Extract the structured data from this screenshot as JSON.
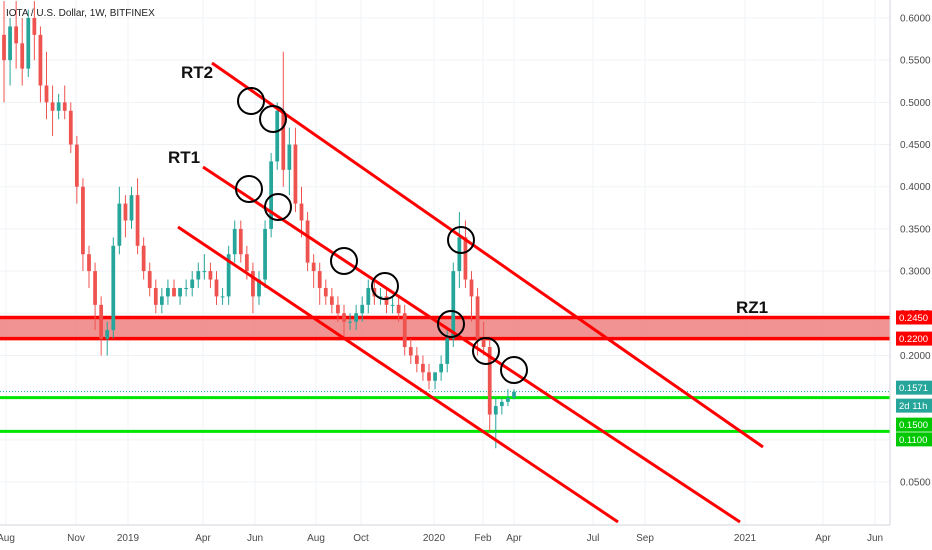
{
  "chart_data": {
    "type": "candlestick",
    "title": "IOTA / U.S. Dollar, 1W, BITFINEX",
    "y_ticks": [
      0.05,
      0.11,
      0.15,
      0.2,
      0.22,
      0.245,
      0.25,
      0.3,
      0.35,
      0.4,
      0.45,
      0.5,
      0.55,
      0.6
    ],
    "y_tick_labels": [
      "0.0500",
      "0.1100",
      "0.1500",
      "0.2000",
      "0.2200",
      "0.2450",
      "0.2500",
      "0.3000",
      "0.3500",
      "0.4000",
      "0.4500",
      "0.5000",
      "0.5500",
      "0.6000"
    ],
    "x_tick_labels": [
      "Aug",
      "Nov",
      "2019",
      "Apr",
      "Jun",
      "Aug",
      "Oct",
      "2020",
      "Feb",
      "Apr",
      "Jul",
      "Sep",
      "2021",
      "Apr",
      "Jun"
    ],
    "ylim": [
      0.0,
      0.62
    ],
    "colors": {
      "up": "#26a69a",
      "down": "#ef5350",
      "line": "#ff0000",
      "support": "#00e600",
      "zone": "#f08080"
    },
    "candles": [
      {
        "o": 0.58,
        "h": 0.62,
        "l": 0.5,
        "c": 0.55
      },
      {
        "o": 0.55,
        "h": 0.6,
        "l": 0.52,
        "c": 0.59
      },
      {
        "o": 0.59,
        "h": 0.62,
        "l": 0.54,
        "c": 0.57
      },
      {
        "o": 0.57,
        "h": 0.6,
        "l": 0.52,
        "c": 0.54
      },
      {
        "o": 0.54,
        "h": 0.61,
        "l": 0.53,
        "c": 0.6
      },
      {
        "o": 0.6,
        "h": 0.62,
        "l": 0.55,
        "c": 0.58
      },
      {
        "o": 0.58,
        "h": 0.59,
        "l": 0.5,
        "c": 0.52
      },
      {
        "o": 0.52,
        "h": 0.56,
        "l": 0.48,
        "c": 0.5
      },
      {
        "o": 0.5,
        "h": 0.52,
        "l": 0.46,
        "c": 0.49
      },
      {
        "o": 0.49,
        "h": 0.51,
        "l": 0.48,
        "c": 0.5
      },
      {
        "o": 0.5,
        "h": 0.52,
        "l": 0.48,
        "c": 0.49
      },
      {
        "o": 0.49,
        "h": 0.5,
        "l": 0.44,
        "c": 0.45
      },
      {
        "o": 0.45,
        "h": 0.46,
        "l": 0.38,
        "c": 0.4
      },
      {
        "o": 0.4,
        "h": 0.41,
        "l": 0.3,
        "c": 0.32
      },
      {
        "o": 0.32,
        "h": 0.33,
        "l": 0.28,
        "c": 0.3
      },
      {
        "o": 0.3,
        "h": 0.31,
        "l": 0.23,
        "c": 0.26
      },
      {
        "o": 0.26,
        "h": 0.27,
        "l": 0.2,
        "c": 0.22
      },
      {
        "o": 0.22,
        "h": 0.24,
        "l": 0.2,
        "c": 0.23
      },
      {
        "o": 0.23,
        "h": 0.34,
        "l": 0.22,
        "c": 0.33
      },
      {
        "o": 0.33,
        "h": 0.4,
        "l": 0.32,
        "c": 0.38
      },
      {
        "o": 0.38,
        "h": 0.39,
        "l": 0.34,
        "c": 0.36
      },
      {
        "o": 0.36,
        "h": 0.4,
        "l": 0.35,
        "c": 0.39
      },
      {
        "o": 0.39,
        "h": 0.41,
        "l": 0.32,
        "c": 0.33
      },
      {
        "o": 0.33,
        "h": 0.34,
        "l": 0.29,
        "c": 0.3
      },
      {
        "o": 0.3,
        "h": 0.31,
        "l": 0.27,
        "c": 0.28
      },
      {
        "o": 0.28,
        "h": 0.29,
        "l": 0.25,
        "c": 0.26
      },
      {
        "o": 0.26,
        "h": 0.28,
        "l": 0.25,
        "c": 0.27
      },
      {
        "o": 0.27,
        "h": 0.29,
        "l": 0.26,
        "c": 0.28
      },
      {
        "o": 0.28,
        "h": 0.29,
        "l": 0.27,
        "c": 0.27
      },
      {
        "o": 0.27,
        "h": 0.28,
        "l": 0.26,
        "c": 0.28
      },
      {
        "o": 0.28,
        "h": 0.29,
        "l": 0.27,
        "c": 0.28
      },
      {
        "o": 0.28,
        "h": 0.3,
        "l": 0.27,
        "c": 0.29
      },
      {
        "o": 0.29,
        "h": 0.31,
        "l": 0.28,
        "c": 0.3
      },
      {
        "o": 0.3,
        "h": 0.32,
        "l": 0.29,
        "c": 0.3
      },
      {
        "o": 0.3,
        "h": 0.31,
        "l": 0.28,
        "c": 0.29
      },
      {
        "o": 0.29,
        "h": 0.3,
        "l": 0.26,
        "c": 0.27
      },
      {
        "o": 0.27,
        "h": 0.28,
        "l": 0.26,
        "c": 0.27
      },
      {
        "o": 0.27,
        "h": 0.33,
        "l": 0.26,
        "c": 0.32
      },
      {
        "o": 0.32,
        "h": 0.36,
        "l": 0.31,
        "c": 0.35
      },
      {
        "o": 0.35,
        "h": 0.36,
        "l": 0.31,
        "c": 0.32
      },
      {
        "o": 0.32,
        "h": 0.33,
        "l": 0.29,
        "c": 0.3
      },
      {
        "o": 0.3,
        "h": 0.31,
        "l": 0.25,
        "c": 0.27
      },
      {
        "o": 0.27,
        "h": 0.3,
        "l": 0.26,
        "c": 0.29
      },
      {
        "o": 0.29,
        "h": 0.36,
        "l": 0.28,
        "c": 0.35
      },
      {
        "o": 0.35,
        "h": 0.44,
        "l": 0.34,
        "c": 0.43
      },
      {
        "o": 0.43,
        "h": 0.5,
        "l": 0.42,
        "c": 0.49
      },
      {
        "o": 0.49,
        "h": 0.56,
        "l": 0.4,
        "c": 0.42
      },
      {
        "o": 0.42,
        "h": 0.47,
        "l": 0.39,
        "c": 0.45
      },
      {
        "o": 0.45,
        "h": 0.47,
        "l": 0.37,
        "c": 0.38
      },
      {
        "o": 0.38,
        "h": 0.4,
        "l": 0.34,
        "c": 0.36
      },
      {
        "o": 0.36,
        "h": 0.37,
        "l": 0.3,
        "c": 0.31
      },
      {
        "o": 0.31,
        "h": 0.32,
        "l": 0.28,
        "c": 0.3
      },
      {
        "o": 0.3,
        "h": 0.31,
        "l": 0.26,
        "c": 0.28
      },
      {
        "o": 0.28,
        "h": 0.29,
        "l": 0.26,
        "c": 0.27
      },
      {
        "o": 0.27,
        "h": 0.28,
        "l": 0.25,
        "c": 0.26
      },
      {
        "o": 0.26,
        "h": 0.27,
        "l": 0.24,
        "c": 0.25
      },
      {
        "o": 0.25,
        "h": 0.26,
        "l": 0.22,
        "c": 0.24
      },
      {
        "o": 0.24,
        "h": 0.25,
        "l": 0.23,
        "c": 0.24
      },
      {
        "o": 0.24,
        "h": 0.26,
        "l": 0.23,
        "c": 0.25
      },
      {
        "o": 0.25,
        "h": 0.27,
        "l": 0.24,
        "c": 0.26
      },
      {
        "o": 0.26,
        "h": 0.29,
        "l": 0.25,
        "c": 0.28
      },
      {
        "o": 0.28,
        "h": 0.29,
        "l": 0.26,
        "c": 0.27
      },
      {
        "o": 0.27,
        "h": 0.28,
        "l": 0.26,
        "c": 0.27
      },
      {
        "o": 0.27,
        "h": 0.28,
        "l": 0.25,
        "c": 0.26
      },
      {
        "o": 0.26,
        "h": 0.27,
        "l": 0.25,
        "c": 0.26
      },
      {
        "o": 0.26,
        "h": 0.27,
        "l": 0.24,
        "c": 0.25
      },
      {
        "o": 0.25,
        "h": 0.26,
        "l": 0.2,
        "c": 0.21
      },
      {
        "o": 0.21,
        "h": 0.22,
        "l": 0.19,
        "c": 0.2
      },
      {
        "o": 0.2,
        "h": 0.21,
        "l": 0.18,
        "c": 0.19
      },
      {
        "o": 0.19,
        "h": 0.2,
        "l": 0.17,
        "c": 0.18
      },
      {
        "o": 0.18,
        "h": 0.19,
        "l": 0.16,
        "c": 0.17
      },
      {
        "o": 0.17,
        "h": 0.18,
        "l": 0.16,
        "c": 0.18
      },
      {
        "o": 0.18,
        "h": 0.2,
        "l": 0.17,
        "c": 0.19
      },
      {
        "o": 0.19,
        "h": 0.23,
        "l": 0.18,
        "c": 0.22
      },
      {
        "o": 0.22,
        "h": 0.31,
        "l": 0.21,
        "c": 0.3
      },
      {
        "o": 0.3,
        "h": 0.37,
        "l": 0.28,
        "c": 0.34
      },
      {
        "o": 0.34,
        "h": 0.36,
        "l": 0.28,
        "c": 0.29
      },
      {
        "o": 0.29,
        "h": 0.3,
        "l": 0.24,
        "c": 0.27
      },
      {
        "o": 0.27,
        "h": 0.28,
        "l": 0.2,
        "c": 0.22
      },
      {
        "o": 0.22,
        "h": 0.24,
        "l": 0.2,
        "c": 0.21
      },
      {
        "o": 0.21,
        "h": 0.22,
        "l": 0.11,
        "c": 0.13
      },
      {
        "o": 0.13,
        "h": 0.15,
        "l": 0.09,
        "c": 0.14
      },
      {
        "o": 0.14,
        "h": 0.15,
        "l": 0.13,
        "c": 0.145
      },
      {
        "o": 0.145,
        "h": 0.16,
        "l": 0.14,
        "c": 0.15
      },
      {
        "o": 0.15,
        "h": 0.16,
        "l": 0.148,
        "c": 0.157
      }
    ],
    "annotations": [
      {
        "label": "RT2"
      },
      {
        "label": "RT1"
      },
      {
        "label": "RZ1"
      }
    ],
    "price_tags": [
      {
        "text": "0.2450",
        "kind": "resistance"
      },
      {
        "text": "0.2200",
        "kind": "resistance"
      },
      {
        "text": "0.1571",
        "kind": "last"
      },
      {
        "text": "2d 11h",
        "kind": "countdown"
      },
      {
        "text": "0.1500",
        "kind": "support"
      },
      {
        "text": "0.1100",
        "kind": "support"
      }
    ],
    "resistance_zone": [
      0.22,
      0.245
    ],
    "support_levels": [
      0.15,
      0.11
    ],
    "last_price": 0.1571,
    "grid": true
  }
}
